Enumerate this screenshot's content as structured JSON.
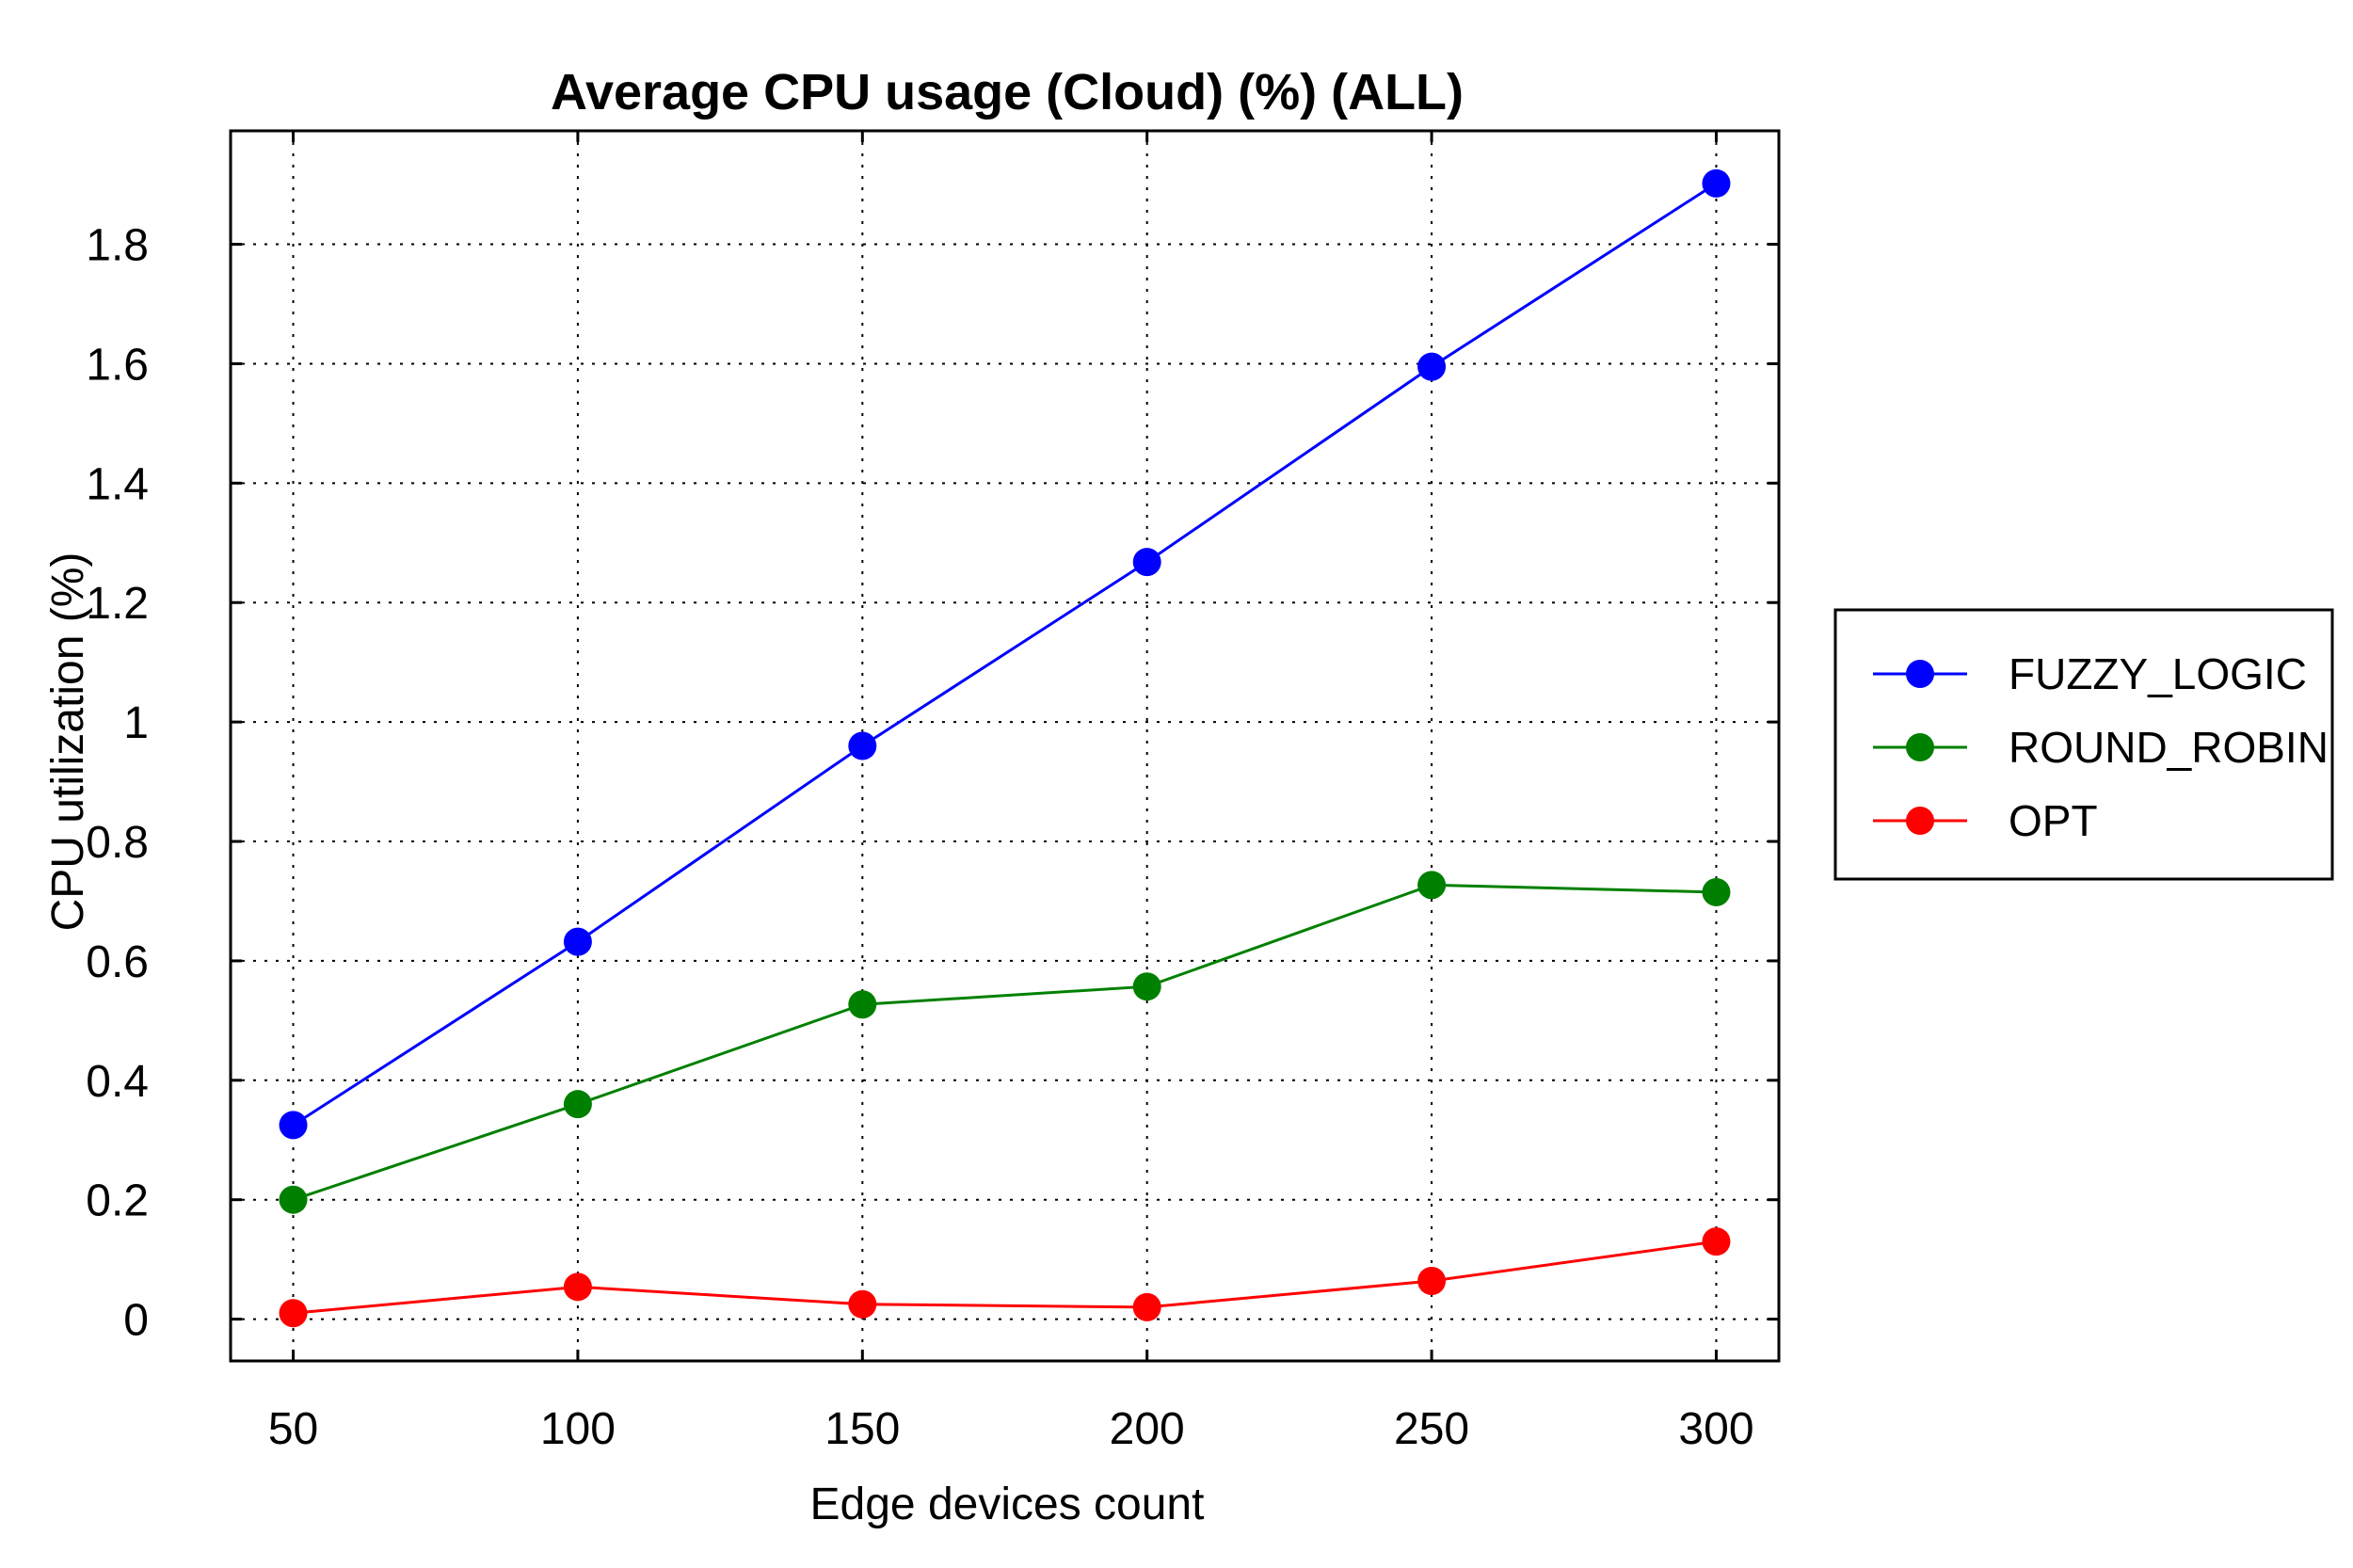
{
  "chart_data": {
    "type": "line",
    "title": "Average CPU usage (Cloud) (%) (ALL)",
    "xlabel": "Edge devices count",
    "ylabel": "CPU utilization (%)",
    "x": [
      50,
      100,
      150,
      200,
      250,
      300
    ],
    "x_tick_labels": [
      "50",
      "100",
      "150",
      "200",
      "250",
      "300"
    ],
    "xlim": [
      39,
      311
    ],
    "ylim": [
      -0.07,
      1.99
    ],
    "y_ticks": [
      0,
      0.2,
      0.4,
      0.6,
      0.8,
      1,
      1.2,
      1.4,
      1.6,
      1.8
    ],
    "y_tick_labels": [
      "0",
      "0.2",
      "0.4",
      "0.6",
      "0.8",
      "1",
      "1.2",
      "1.4",
      "1.6",
      "1.8"
    ],
    "grid": true,
    "legend_position": "right",
    "series": [
      {
        "name": "FUZZY_LOGIC",
        "color": "#0000ff",
        "values": [
          0.325,
          0.632,
          0.96,
          1.268,
          1.595,
          1.902
        ]
      },
      {
        "name": " ROUND_ROBIN",
        "color": "#008000",
        "values": [
          0.2,
          0.36,
          0.527,
          0.557,
          0.727,
          0.715
        ]
      },
      {
        "name": "OPT",
        "color": "#ff0000",
        "values": [
          0.01,
          0.054,
          0.025,
          0.02,
          0.064,
          0.13
        ]
      }
    ]
  }
}
